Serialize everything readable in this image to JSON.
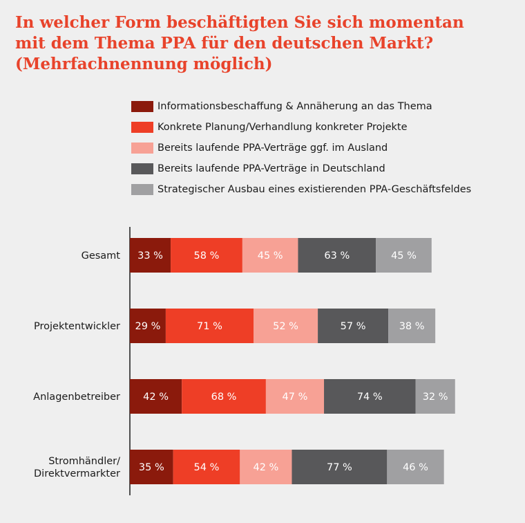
{
  "title": {
    "lines": [
      "In welcher Form beschäftigten Sie sich momentan",
      "mit dem Thema PPA für den deutschen Markt?",
      "(Mehrfachnennung möglich)"
    ]
  },
  "colors": {
    "background": "#efefef",
    "title": "#e8432b",
    "axis": "#1a1a1a",
    "bar_label": "#ffffff",
    "series": [
      "#8b1a0c",
      "#ee3e26",
      "#f7a195",
      "#58585a",
      "#a0a0a2"
    ]
  },
  "chart_data": {
    "type": "bar",
    "orientation": "horizontal",
    "stacked": true,
    "categories": [
      "Gesamt",
      "Projektentwickler",
      "Anlagenbetreiber",
      "Stromhändler/\nDirektvermarkter"
    ],
    "series": [
      {
        "name": "Informationsbeschaffung & Annäherung an das Thema",
        "values": [
          33,
          29,
          42,
          35
        ]
      },
      {
        "name": "Konkrete Planung/Verhandlung konkreter Projekte",
        "values": [
          58,
          71,
          68,
          54
        ]
      },
      {
        "name": "Bereits laufende PPA-Verträge ggf. im Ausland",
        "values": [
          45,
          52,
          47,
          42
        ]
      },
      {
        "name": "Bereits laufende PPA-Verträge in Deutschland",
        "values": [
          63,
          57,
          74,
          77
        ]
      },
      {
        "name": "Strategischer Ausbau eines existierenden PPA-Geschäftsfeldes",
        "values": [
          45,
          38,
          32,
          46
        ]
      }
    ],
    "value_suffix": " %",
    "legend_position": "top",
    "grid": false
  }
}
